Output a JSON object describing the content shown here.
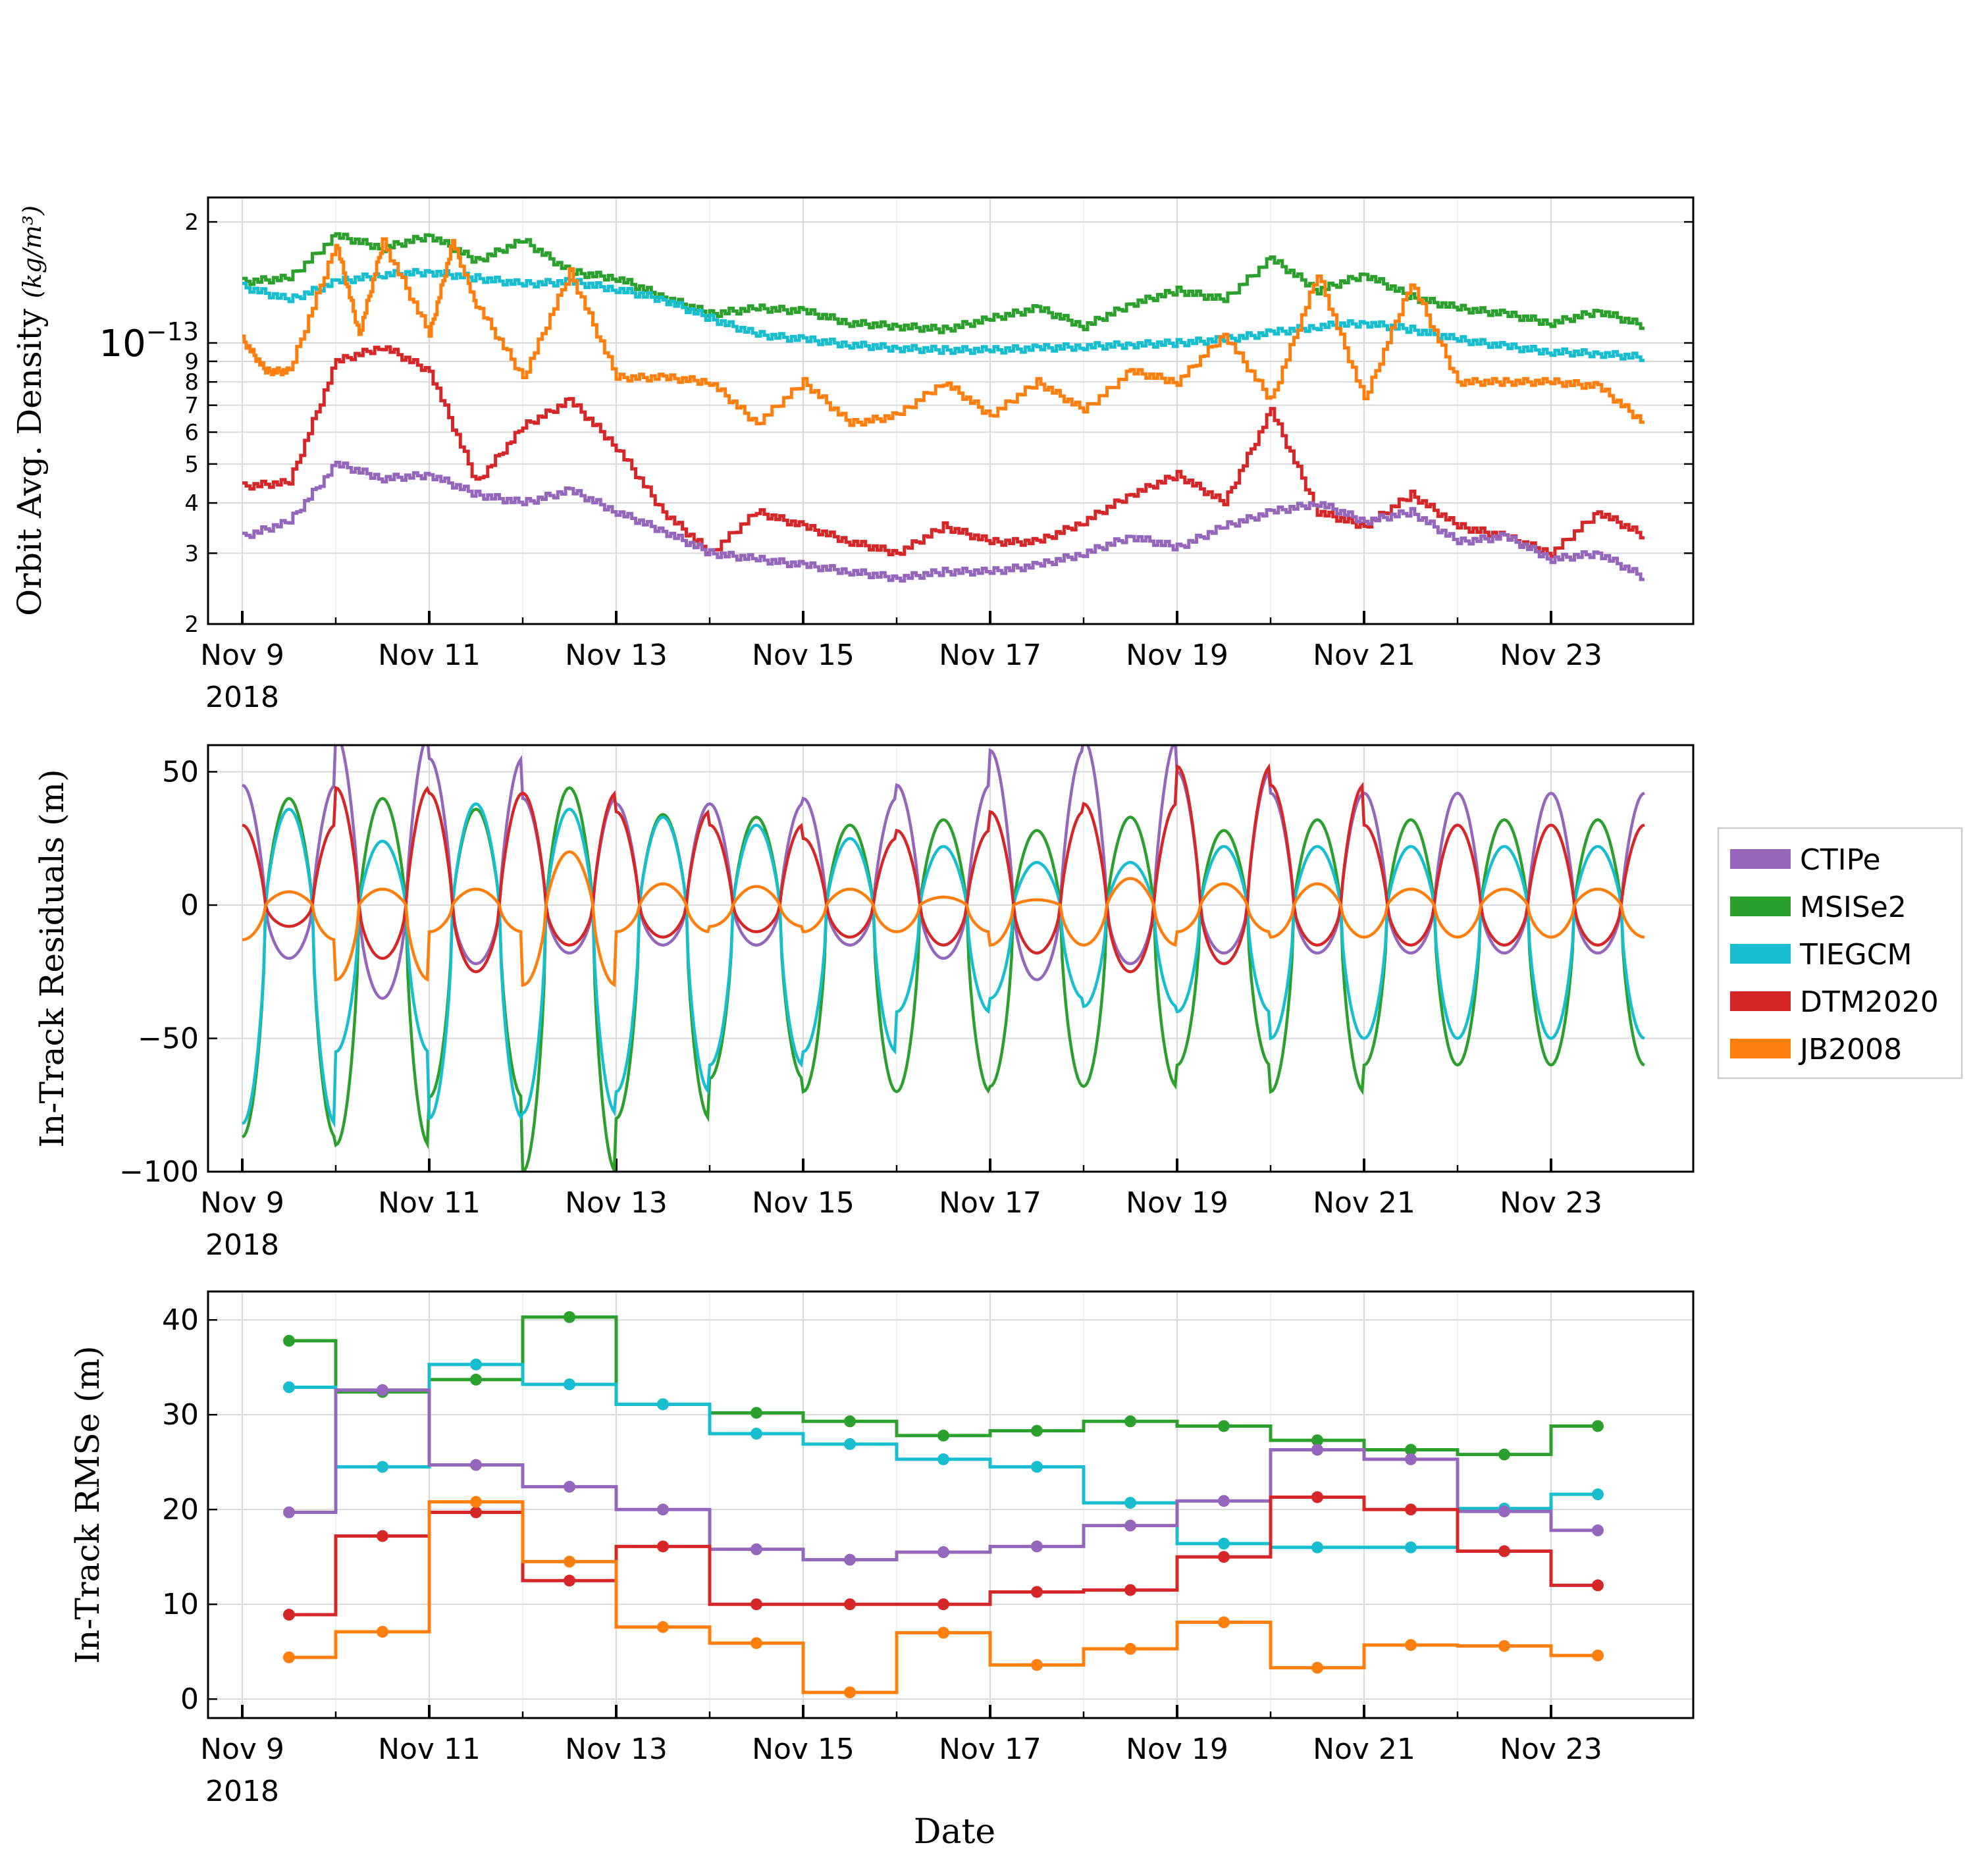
{
  "x_tick_labels": [
    "Nov 9",
    "Nov 11",
    "Nov 13",
    "Nov 15",
    "Nov 17",
    "Nov 19",
    "Nov 21",
    "Nov 23"
  ],
  "x_year_label": "2018",
  "xlabel": "Date",
  "legend": {
    "placement": "right",
    "entries": [
      {
        "name": "CTIPe",
        "color": "#9467bd"
      },
      {
        "name": "MSISe2",
        "color": "#2ca02c"
      },
      {
        "name": "TIEGCM",
        "color": "#17becf"
      },
      {
        "name": "DTM2020",
        "color": "#d62728"
      },
      {
        "name": "JB2008",
        "color": "#ff7f0e"
      }
    ]
  },
  "chart_data": [
    {
      "type": "line",
      "ylabel": "Orbit Avg. Density",
      "ylabel_unit": "kg/m³",
      "yscale": "log",
      "ylim": [
        2e-14,
        2.3e-13
      ],
      "y_tick_labels": [
        "2",
        "3",
        "4",
        "5",
        "6",
        "7",
        "8",
        "9",
        "10−13",
        "2"
      ],
      "xlim": [
        "2018-11-08T20:00",
        "2018-11-24T12:00"
      ],
      "grid": true,
      "series": [
        {
          "name": "MSISe2",
          "color": "#2ca02c",
          "x": [
            "2018-11-09",
            "2018-11-09T12",
            "2018-11-10",
            "2018-11-10T12",
            "2018-11-11",
            "2018-11-11T12",
            "2018-11-12",
            "2018-11-12T12",
            "2018-11-13",
            "2018-11-13T12",
            "2018-11-14",
            "2018-11-14T12",
            "2018-11-15",
            "2018-11-15T12",
            "2018-11-16",
            "2018-11-16T12",
            "2018-11-17",
            "2018-11-17T12",
            "2018-11-18",
            "2018-11-18T12",
            "2018-11-19",
            "2018-11-19T12",
            "2018-11-20",
            "2018-11-20T12",
            "2018-11-21",
            "2018-11-21T12",
            "2018-11-22",
            "2018-11-22T12",
            "2018-11-23",
            "2018-11-23T12",
            "2018-11-24"
          ],
          "y": [
            1.42e-13,
            1.45e-13,
            1.85e-13,
            1.72e-13,
            1.85e-13,
            1.6e-13,
            1.8e-13,
            1.5e-13,
            1.45e-13,
            1.3e-13,
            1.18e-13,
            1.22e-13,
            1.2e-13,
            1.12e-13,
            1.1e-13,
            1.08e-13,
            1.15e-13,
            1.22e-13,
            1.1e-13,
            1.25e-13,
            1.35e-13,
            1.28e-13,
            1.62e-13,
            1.35e-13,
            1.48e-13,
            1.3e-13,
            1.22e-13,
            1.18e-13,
            1.12e-13,
            1.2e-13,
            1.1e-13
          ]
        },
        {
          "name": "TIEGCM",
          "color": "#17becf",
          "x": [
            "2018-11-09",
            "2018-11-09T12",
            "2018-11-10",
            "2018-11-10T12",
            "2018-11-11",
            "2018-11-11T12",
            "2018-11-12",
            "2018-11-12T12",
            "2018-11-13",
            "2018-11-13T12",
            "2018-11-14",
            "2018-11-14T12",
            "2018-11-15",
            "2018-11-15T12",
            "2018-11-16",
            "2018-11-16T12",
            "2018-11-17",
            "2018-11-17T12",
            "2018-11-18",
            "2018-11-18T12",
            "2018-11-19",
            "2018-11-19T12",
            "2018-11-20",
            "2018-11-20T12",
            "2018-11-21",
            "2018-11-21T12",
            "2018-11-22",
            "2018-11-22T12",
            "2018-11-23",
            "2018-11-23T12",
            "2018-11-24"
          ],
          "y": [
            1.38e-13,
            1.28e-13,
            1.42e-13,
            1.48e-13,
            1.5e-13,
            1.45e-13,
            1.4e-13,
            1.42e-13,
            1.36e-13,
            1.28e-13,
            1.15e-13,
            1.05e-13,
            1.02e-13,
            9.9e-14,
            9.7e-14,
            9.6e-14,
            9.6e-14,
            9.7e-14,
            9.8e-14,
            9.9e-14,
            1e-13,
            1.02e-13,
            1.06e-13,
            1.1e-13,
            1.12e-13,
            1.08e-13,
            1.02e-13,
            9.8e-14,
            9.5e-14,
            9.4e-14,
            9.2e-14
          ]
        },
        {
          "name": "JB2008",
          "color": "#ff7f0e",
          "x": [
            "2018-11-09",
            "2018-11-09T06",
            "2018-11-09T12",
            "2018-11-10",
            "2018-11-10T06",
            "2018-11-10T12",
            "2018-11-11",
            "2018-11-11T06",
            "2018-11-11T12",
            "2018-11-12",
            "2018-11-12T12",
            "2018-11-13",
            "2018-11-13T12",
            "2018-11-14",
            "2018-11-14T12",
            "2018-11-15",
            "2018-11-15T12",
            "2018-11-16",
            "2018-11-16T12",
            "2018-11-17",
            "2018-11-17T12",
            "2018-11-18",
            "2018-11-18T12",
            "2018-11-19",
            "2018-11-19T12",
            "2018-11-20",
            "2018-11-20T12",
            "2018-11-21",
            "2018-11-21T12",
            "2018-11-22",
            "2018-11-22T12",
            "2018-11-23",
            "2018-11-23T12",
            "2018-11-24"
          ],
          "y": [
            1.02e-13,
            8.5e-14,
            8.5e-14,
            1.78e-13,
            1.05e-13,
            1.78e-13,
            1.05e-13,
            1.78e-13,
            1.25e-13,
            8.2e-14,
            1.5e-13,
            8.2e-14,
            8.2e-14,
            8e-14,
            6.3e-14,
            8e-14,
            6.3e-14,
            6.6e-14,
            8e-14,
            6.6e-14,
            8e-14,
            6.8e-14,
            8.5e-14,
            8e-14,
            1.05e-13,
            7.2e-14,
            1.48e-13,
            7.2e-14,
            1.42e-13,
            8e-14,
            8e-14,
            8e-14,
            7.8e-14,
            6.3e-14
          ]
        },
        {
          "name": "DTM2020",
          "color": "#d62728",
          "x": [
            "2018-11-09",
            "2018-11-09T12",
            "2018-11-10",
            "2018-11-10T12",
            "2018-11-11",
            "2018-11-11T12",
            "2018-11-12",
            "2018-11-12T12",
            "2018-11-13",
            "2018-11-13T12",
            "2018-11-14",
            "2018-11-14T12",
            "2018-11-15",
            "2018-11-15T12",
            "2018-11-16",
            "2018-11-16T12",
            "2018-11-17",
            "2018-11-17T12",
            "2018-11-18",
            "2018-11-18T12",
            "2018-11-19",
            "2018-11-19T12",
            "2018-11-20",
            "2018-11-20T12",
            "2018-11-21",
            "2018-11-21T12",
            "2018-11-22",
            "2018-11-22T12",
            "2018-11-23",
            "2018-11-23T12",
            "2018-11-24"
          ],
          "y": [
            4.4e-14,
            4.5e-14,
            9e-14,
            9.8e-14,
            8.5e-14,
            4.5e-14,
            6.2e-14,
            7.2e-14,
            5.5e-14,
            3.8e-14,
            3e-14,
            3.8e-14,
            3.5e-14,
            3.2e-14,
            3e-14,
            3.5e-14,
            3.2e-14,
            3.2e-14,
            3.6e-14,
            4.2e-14,
            4.7e-14,
            4e-14,
            6.8e-14,
            3.8e-14,
            3.5e-14,
            4.2e-14,
            3.5e-14,
            3.3e-14,
            3e-14,
            3.8e-14,
            3.3e-14
          ]
        },
        {
          "name": "CTIPe",
          "color": "#9467bd",
          "x": [
            "2018-11-09",
            "2018-11-09T12",
            "2018-11-10",
            "2018-11-10T12",
            "2018-11-11",
            "2018-11-11T12",
            "2018-11-12",
            "2018-11-12T12",
            "2018-11-13",
            "2018-11-13T12",
            "2018-11-14",
            "2018-11-14T12",
            "2018-11-15",
            "2018-11-15T12",
            "2018-11-16",
            "2018-11-16T12",
            "2018-11-17",
            "2018-11-17T12",
            "2018-11-18",
            "2018-11-18T12",
            "2018-11-19",
            "2018-11-19T12",
            "2018-11-20",
            "2018-11-20T12",
            "2018-11-21",
            "2018-11-21T12",
            "2018-11-22",
            "2018-11-22T12",
            "2018-11-23",
            "2018-11-23T12",
            "2018-11-24"
          ],
          "y": [
            3.3e-14,
            3.6e-14,
            5e-14,
            4.6e-14,
            4.7e-14,
            4.2e-14,
            4e-14,
            4.3e-14,
            3.8e-14,
            3.4e-14,
            3e-14,
            2.9e-14,
            2.8e-14,
            2.7e-14,
            2.6e-14,
            2.7e-14,
            2.7e-14,
            2.8e-14,
            3e-14,
            3.3e-14,
            3.1e-14,
            3.5e-14,
            3.8e-14,
            4e-14,
            3.6e-14,
            3.8e-14,
            3.2e-14,
            3.3e-14,
            2.9e-14,
            3e-14,
            2.6e-14
          ]
        }
      ]
    },
    {
      "type": "line",
      "ylabel": "In-Track Residuals (m)",
      "ylim": [
        -100,
        60
      ],
      "y_tick_labels": [
        "50",
        "0",
        "−50",
        "−100"
      ],
      "xlim": [
        "2018-11-08T20:00",
        "2018-11-24T12:00"
      ],
      "grid": true,
      "series": [
        {
          "name": "CTIPe",
          "color": "#9467bd",
          "oscillation_period_days": 1,
          "amplitude": [
            45,
            64,
            55,
            40,
            38,
            38,
            40,
            45,
            58,
            62,
            50,
            42
          ],
          "minimum": [
            -20,
            -35,
            -22,
            -18,
            -15,
            -15,
            -15,
            -20,
            -28,
            -22,
            -18
          ]
        },
        {
          "name": "MSISe2",
          "color": "#2ca02c",
          "oscillation_period_days": 1,
          "amplitude": [
            40,
            40,
            36,
            44,
            34,
            33,
            30,
            32,
            28,
            33,
            28,
            32
          ],
          "minimum": [
            -87,
            -90,
            -72,
            -100,
            -80,
            -65,
            -70,
            -70,
            -68,
            -68,
            -60,
            -70,
            -60
          ]
        },
        {
          "name": "TIEGCM",
          "color": "#17becf",
          "oscillation_period_days": 1,
          "amplitude": [
            36,
            24,
            38,
            36,
            33,
            30,
            25,
            22,
            16,
            16,
            22,
            22
          ],
          "minimum": [
            -82,
            -55,
            -80,
            -78,
            -70,
            -60,
            -55,
            -40,
            -35,
            -38,
            -40,
            -50
          ]
        },
        {
          "name": "DTM2020",
          "color": "#d62728",
          "oscillation_period_days": 1,
          "amplitude": [
            30,
            44,
            42,
            42,
            35,
            30,
            25,
            28,
            35,
            38,
            52,
            45,
            30
          ],
          "minimum": [
            -8,
            -20,
            -25,
            -15,
            -12,
            -10,
            -12,
            -15,
            -18,
            -25,
            -22,
            -15
          ]
        },
        {
          "name": "JB2008",
          "color": "#ff7f0e",
          "oscillation_period_days": 1,
          "amplitude": [
            5,
            6,
            6,
            20,
            8,
            7,
            6,
            3,
            2,
            10,
            8,
            8,
            6
          ],
          "minimum": [
            -13,
            -28,
            -10,
            -30,
            -10,
            -8,
            -10,
            -10,
            -15,
            -15,
            -10,
            -12
          ]
        }
      ]
    },
    {
      "type": "line",
      "ylabel": "In-Track RMSe (m)",
      "ylim": [
        -2,
        43
      ],
      "y_tick_labels": [
        "40",
        "30",
        "20",
        "10",
        "0"
      ],
      "xlim": [
        "2018-11-08T20:00",
        "2018-11-24T12:00"
      ],
      "grid": true,
      "step": "mid",
      "x": [
        "2018-11-09T12",
        "2018-11-10T12",
        "2018-11-11T12",
        "2018-11-12T12",
        "2018-11-13T12",
        "2018-11-14T12",
        "2018-11-15T12",
        "2018-11-16T12",
        "2018-11-17T12",
        "2018-11-18T12",
        "2018-11-19T12",
        "2018-11-20T12",
        "2018-11-21T12",
        "2018-11-22T12",
        "2018-11-23T12"
      ],
      "series": [
        {
          "name": "MSISe2",
          "color": "#2ca02c",
          "values": [
            37.8,
            32.4,
            33.7,
            40.3,
            31.1,
            30.2,
            29.3,
            27.8,
            28.3,
            29.3,
            28.8,
            27.3,
            26.3,
            25.8,
            28.8
          ]
        },
        {
          "name": "TIEGCM",
          "color": "#17becf",
          "values": [
            32.9,
            24.5,
            35.3,
            33.2,
            31.1,
            28.0,
            26.9,
            25.3,
            24.5,
            20.7,
            16.4,
            16.0,
            16.0,
            20.1,
            21.6
          ]
        },
        {
          "name": "CTIPe",
          "color": "#9467bd",
          "values": [
            19.7,
            32.6,
            24.7,
            22.4,
            20.0,
            15.8,
            14.7,
            15.5,
            16.1,
            18.3,
            20.9,
            26.3,
            25.3,
            19.8,
            17.8
          ]
        },
        {
          "name": "DTM2020",
          "color": "#d62728",
          "values": [
            8.9,
            17.2,
            19.7,
            12.5,
            16.1,
            10.0,
            10.0,
            10.0,
            11.3,
            11.5,
            15.0,
            21.3,
            20.0,
            15.6,
            12.0
          ]
        },
        {
          "name": "JB2008",
          "color": "#ff7f0e",
          "values": [
            4.4,
            7.1,
            20.8,
            14.5,
            7.6,
            5.9,
            0.7,
            7.0,
            3.6,
            5.3,
            8.1,
            3.3,
            5.7,
            5.6,
            4.6
          ]
        }
      ]
    }
  ]
}
